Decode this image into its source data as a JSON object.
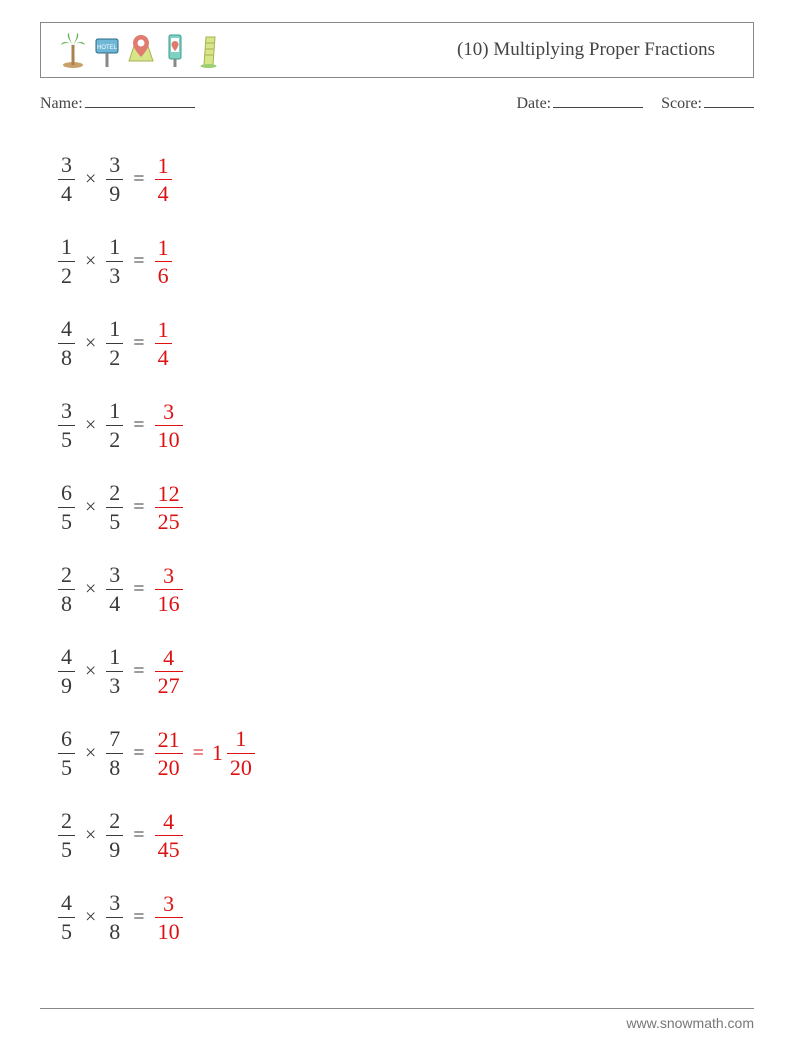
{
  "title": "(10) Multiplying Proper Fractions",
  "meta": {
    "name_label": "Name:",
    "date_label": "Date:",
    "score_label": "Score:",
    "name_underline_width": 110,
    "date_underline_width": 90,
    "score_underline_width": 50
  },
  "colors": {
    "text": "#3a3a3a",
    "answer": "#d11",
    "border": "#888888",
    "background": "#ffffff"
  },
  "typography": {
    "title_fontsize": 19,
    "meta_fontsize": 16,
    "problem_fontsize": 22,
    "footer_fontsize": 14
  },
  "icons": [
    {
      "name": "palm-tree-icon",
      "primary": "#6db05a",
      "secondary": "#c9a06a"
    },
    {
      "name": "hotel-sign-icon",
      "primary": "#6fb7d6",
      "secondary": "#e07c6f"
    },
    {
      "name": "map-pin-icon",
      "primary": "#e07c6f",
      "secondary": "#d8e68a"
    },
    {
      "name": "phone-pin-icon",
      "primary": "#7fd1c4",
      "secondary": "#e07c6f"
    },
    {
      "name": "tower-icon",
      "primary": "#d8e68a",
      "secondary": "#9ccf72"
    }
  ],
  "problems": [
    {
      "a": {
        "n": "3",
        "d": "4"
      },
      "b": {
        "n": "3",
        "d": "9"
      },
      "ans1": {
        "n": "1",
        "d": "4"
      }
    },
    {
      "a": {
        "n": "1",
        "d": "2"
      },
      "b": {
        "n": "1",
        "d": "3"
      },
      "ans1": {
        "n": "1",
        "d": "6"
      }
    },
    {
      "a": {
        "n": "4",
        "d": "8"
      },
      "b": {
        "n": "1",
        "d": "2"
      },
      "ans1": {
        "n": "1",
        "d": "4"
      }
    },
    {
      "a": {
        "n": "3",
        "d": "5"
      },
      "b": {
        "n": "1",
        "d": "2"
      },
      "ans1": {
        "n": "3",
        "d": "10"
      }
    },
    {
      "a": {
        "n": "6",
        "d": "5"
      },
      "b": {
        "n": "2",
        "d": "5"
      },
      "ans1": {
        "n": "12",
        "d": "25"
      }
    },
    {
      "a": {
        "n": "2",
        "d": "8"
      },
      "b": {
        "n": "3",
        "d": "4"
      },
      "ans1": {
        "n": "3",
        "d": "16"
      }
    },
    {
      "a": {
        "n": "4",
        "d": "9"
      },
      "b": {
        "n": "1",
        "d": "3"
      },
      "ans1": {
        "n": "4",
        "d": "27"
      }
    },
    {
      "a": {
        "n": "6",
        "d": "5"
      },
      "b": {
        "n": "7",
        "d": "8"
      },
      "ans1": {
        "n": "21",
        "d": "20"
      },
      "ans2": {
        "whole": "1",
        "n": "1",
        "d": "20"
      }
    },
    {
      "a": {
        "n": "2",
        "d": "5"
      },
      "b": {
        "n": "2",
        "d": "9"
      },
      "ans1": {
        "n": "4",
        "d": "45"
      }
    },
    {
      "a": {
        "n": "4",
        "d": "5"
      },
      "b": {
        "n": "3",
        "d": "8"
      },
      "ans1": {
        "n": "3",
        "d": "10"
      }
    }
  ],
  "footer": "www.snowmath.com"
}
